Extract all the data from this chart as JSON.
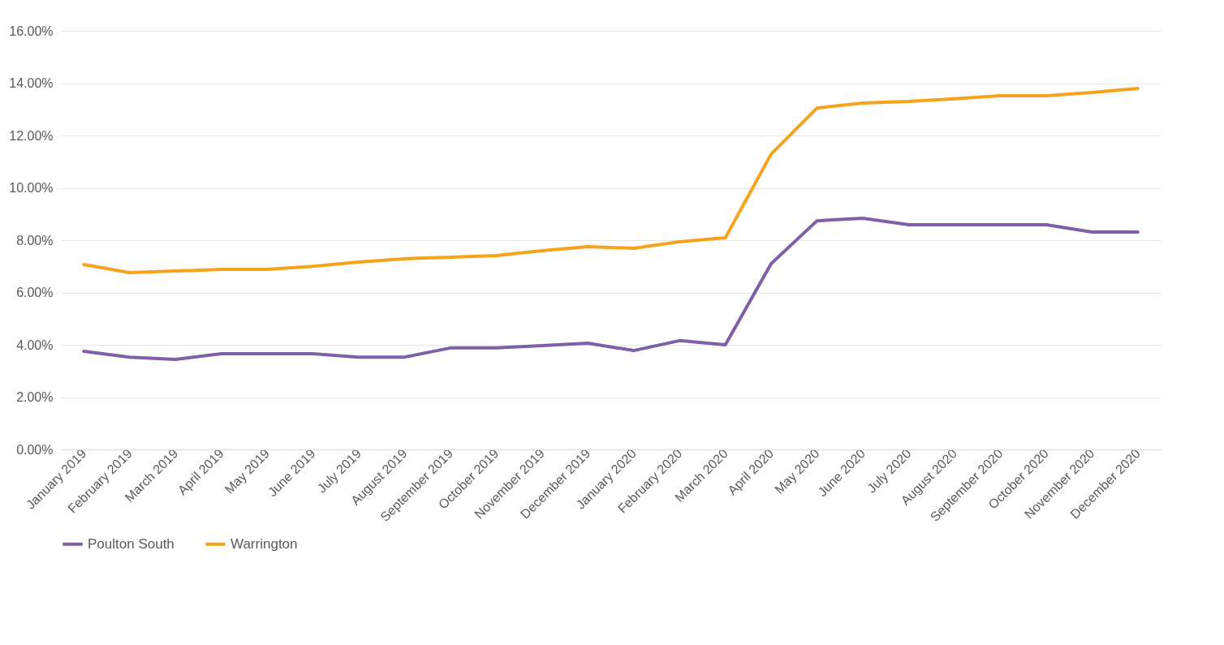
{
  "chart_data": {
    "type": "line",
    "categories": [
      "January 2019",
      "February 2019",
      "March 2019",
      "April 2019",
      "May 2019",
      "June 2019",
      "July 2019",
      "August 2019",
      "September 2019",
      "October 2019",
      "November 2019",
      "December 2019",
      "January 2020",
      "February 2020",
      "March 2020",
      "April 2020",
      "May 2020",
      "June 2020",
      "July 2020",
      "August 2020",
      "September 2020",
      "October 2020",
      "November 2020",
      "December 2020"
    ],
    "series": [
      {
        "name": "Poulton South",
        "color": "#7e5fa8",
        "values": [
          3.75,
          3.53,
          3.44,
          3.66,
          3.66,
          3.66,
          3.53,
          3.53,
          3.88,
          3.88,
          3.97,
          4.06,
          3.78,
          4.16,
          4.0,
          7.1,
          8.74,
          8.84,
          8.59,
          8.59,
          8.59,
          8.59,
          8.31,
          8.31
        ]
      },
      {
        "name": "Warrington",
        "color": "#f7a21b",
        "values": [
          7.07,
          6.76,
          6.82,
          6.88,
          6.88,
          7.0,
          7.16,
          7.29,
          7.35,
          7.41,
          7.6,
          7.75,
          7.69,
          7.94,
          8.09,
          11.29,
          13.05,
          13.24,
          13.3,
          13.4,
          13.52,
          13.52,
          13.64,
          13.8
        ]
      }
    ],
    "ylim": [
      0,
      16
    ],
    "yticks": [
      {
        "value": 0,
        "label": "0.00%"
      },
      {
        "value": 2,
        "label": "2.00%"
      },
      {
        "value": 4,
        "label": "4.00%"
      },
      {
        "value": 6,
        "label": "6.00%"
      },
      {
        "value": 8,
        "label": "8.00%"
      },
      {
        "value": 10,
        "label": "10.00%"
      },
      {
        "value": 12,
        "label": "12.00%"
      },
      {
        "value": 14,
        "label": "14.00%"
      },
      {
        "value": 16,
        "label": "16.00%"
      }
    ],
    "grid": "y",
    "legend": "bottom"
  }
}
